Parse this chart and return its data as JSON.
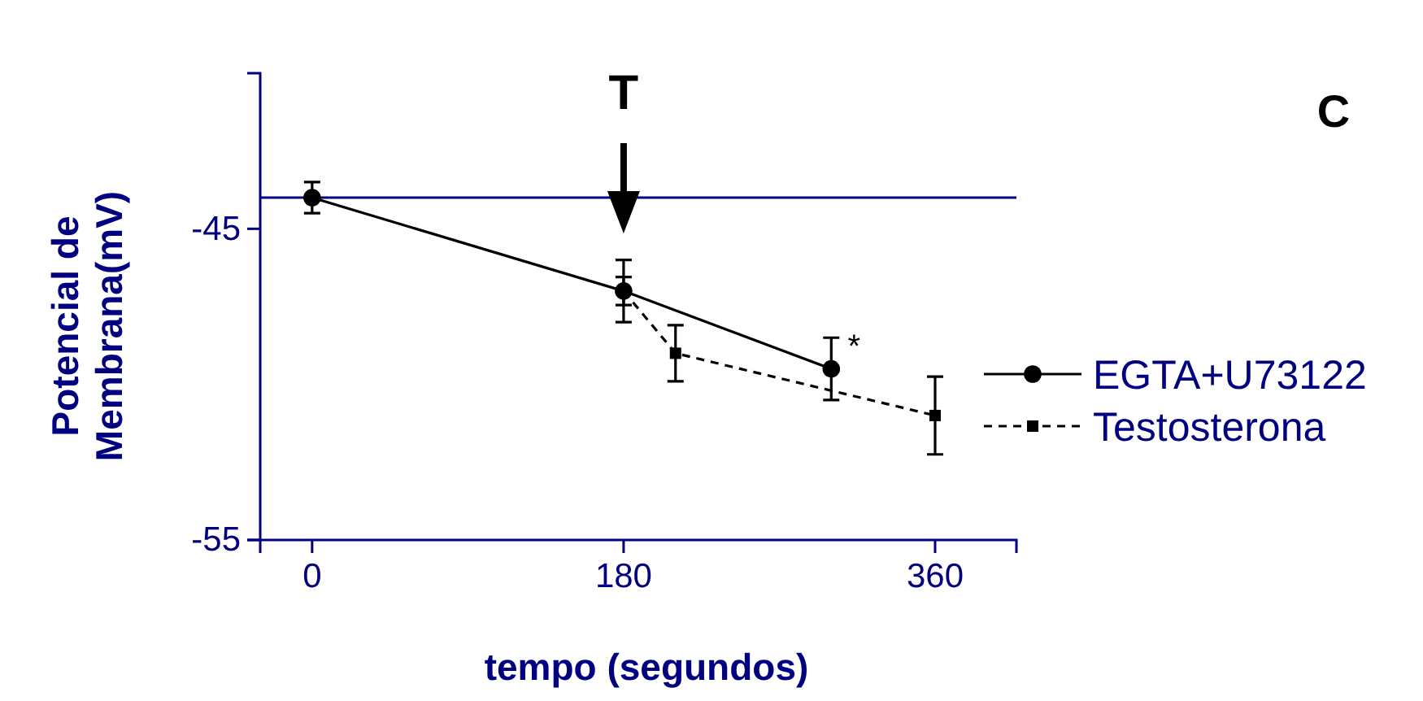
{
  "chart_data": {
    "type": "line",
    "xlabel": "tempo (segundos)",
    "ylabel": "Potencial de\nMembrana(mV)",
    "xlim": [
      -30,
      407
    ],
    "ylim": [
      -55,
      -40
    ],
    "xticks": [
      0,
      180,
      360
    ],
    "yticks": [
      -45,
      -55
    ],
    "series": [
      {
        "name": "EGTA+U73122",
        "color": "#000000",
        "x": [
          0,
          180,
          300
        ],
        "values": [
          -44,
          -47,
          -49.5
        ],
        "errors": [
          0.5,
          1,
          1
        ],
        "marker": "circle",
        "line_style": "solid"
      },
      {
        "name": "Testosterona",
        "color": "#000000",
        "x": [
          180,
          210,
          360
        ],
        "values": [
          -47,
          -49,
          -51
        ],
        "errors": [
          0.45,
          0.9,
          1.25
        ],
        "marker": "square",
        "line_style": "dashed"
      }
    ],
    "ref_lines": [
      {
        "axis": "y",
        "value": -44,
        "color": "#000080"
      }
    ],
    "annotations": [
      "C",
      {
        "text": "T",
        "x": 180,
        "y": -44
      },
      {
        "text": "*",
        "x": 300,
        "y": -48.6
      }
    ],
    "legend": "right",
    "grid": false
  }
}
